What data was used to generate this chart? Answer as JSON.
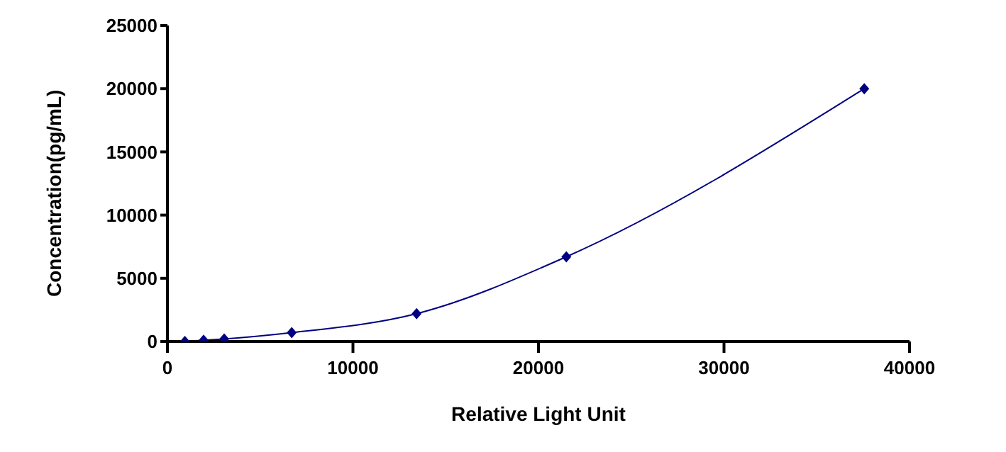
{
  "chart_data": {
    "type": "line",
    "xlabel": "Relative Light Unit",
    "ylabel": "Concentration(pg/mL)",
    "x": [
      940,
      1950,
      3060,
      6700,
      13430,
      21500,
      37560
    ],
    "series": [
      {
        "color": "#000080",
        "values": [
          0,
          100,
          200,
          700,
          2200,
          6700,
          20000
        ]
      }
    ],
    "xlim": [
      0,
      40000
    ],
    "xticks": [
      0,
      10000,
      20000,
      30000,
      40000
    ],
    "ylim": [
      0,
      25000
    ],
    "yticks": [
      0,
      5000,
      10000,
      15000,
      20000,
      25000
    ],
    "grid": false,
    "legend": false,
    "marker": "diamond",
    "line_style": "solid"
  }
}
